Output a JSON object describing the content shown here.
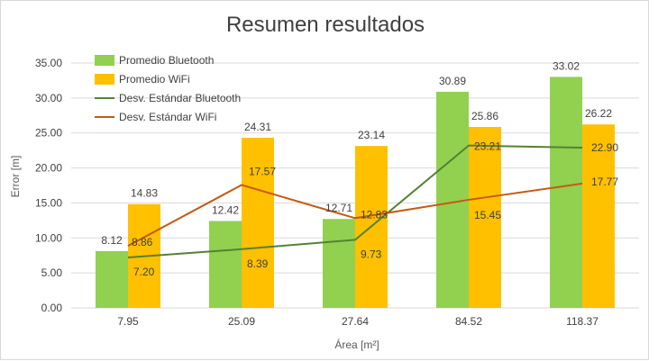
{
  "chart_data": {
    "type": "bar",
    "title": "Resumen resultados",
    "xlabel": "Área [m²]",
    "ylabel": "Error [m]",
    "ylim": [
      0,
      35
    ],
    "yticks": [
      "0.00",
      "5.00",
      "10.00",
      "15.00",
      "20.00",
      "25.00",
      "30.00",
      "35.00"
    ],
    "categories": [
      "7.95",
      "25.09",
      "27.64",
      "84.52",
      "118.37"
    ],
    "grid": true,
    "legend_position": "top-left",
    "bars": [
      {
        "name": "Promedio Bluetooth",
        "color": "#92d050",
        "values": [
          8.12,
          12.42,
          12.71,
          30.89,
          33.02
        ],
        "labels": [
          "8.12",
          "12.42",
          "12.71",
          "30.89",
          "33.02"
        ]
      },
      {
        "name": "Promedio WiFi",
        "color": "#ffc000",
        "values": [
          14.83,
          24.31,
          23.14,
          25.86,
          26.22
        ],
        "labels": [
          "14.83",
          "24.31",
          "23.14",
          "25.86",
          "26.22"
        ]
      }
    ],
    "lines": [
      {
        "name": "Desv. Estándar Bluetooth",
        "color": "#548235",
        "values": [
          7.2,
          8.39,
          9.73,
          23.21,
          22.9
        ],
        "labels": [
          "7.20",
          "8.39",
          "9.73",
          "23.21",
          "22.90"
        ]
      },
      {
        "name": "Desv. Estándar WiFi",
        "color": "#c55a11",
        "values": [
          8.86,
          17.57,
          12.83,
          15.45,
          17.77
        ],
        "labels": [
          "8.86",
          "17.57",
          "12.83",
          "15.45",
          "17.77"
        ]
      }
    ]
  }
}
